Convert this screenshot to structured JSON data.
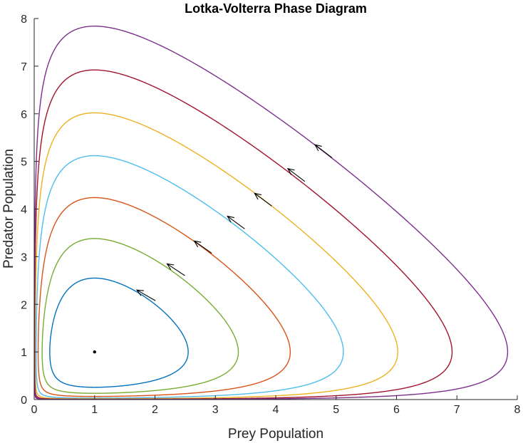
{
  "chart_data": {
    "type": "line",
    "title": "Lotka-Volterra Phase Diagram",
    "xlabel": "Prey Population",
    "ylabel": "Predator Population",
    "xlim": [
      0,
      8
    ],
    "ylim": [
      0,
      8
    ],
    "xticks": [
      "0",
      "1",
      "2",
      "3",
      "4",
      "5",
      "6",
      "7",
      "8"
    ],
    "yticks": [
      "0",
      "1",
      "2",
      "3",
      "4",
      "5",
      "6",
      "7",
      "8"
    ],
    "grid": false,
    "equilibrium": {
      "x": 1,
      "y": 1
    },
    "series": [
      {
        "color": "#0072BD",
        "max_population": 2.55,
        "arrow_at": {
          "x": 1.7,
          "y": 2.3
        }
      },
      {
        "color": "#77AC30",
        "max_population": 3.38,
        "arrow_at": {
          "x": 2.2,
          "y": 2.85
        }
      },
      {
        "color": "#D95319",
        "max_population": 4.24,
        "arrow_at": {
          "x": 2.65,
          "y": 3.33
        }
      },
      {
        "color": "#4DBEEE",
        "max_population": 5.12,
        "arrow_at": {
          "x": 3.2,
          "y": 3.85
        }
      },
      {
        "color": "#EDB120",
        "max_population": 6.02,
        "arrow_at": {
          "x": 3.65,
          "y": 4.33
        }
      },
      {
        "color": "#A2142F",
        "max_population": 6.92,
        "arrow_at": {
          "x": 4.2,
          "y": 4.85
        }
      },
      {
        "color": "#7E2F8E",
        "max_population": 7.84,
        "arrow_at": {
          "x": 4.65,
          "y": 5.35
        }
      }
    ]
  }
}
